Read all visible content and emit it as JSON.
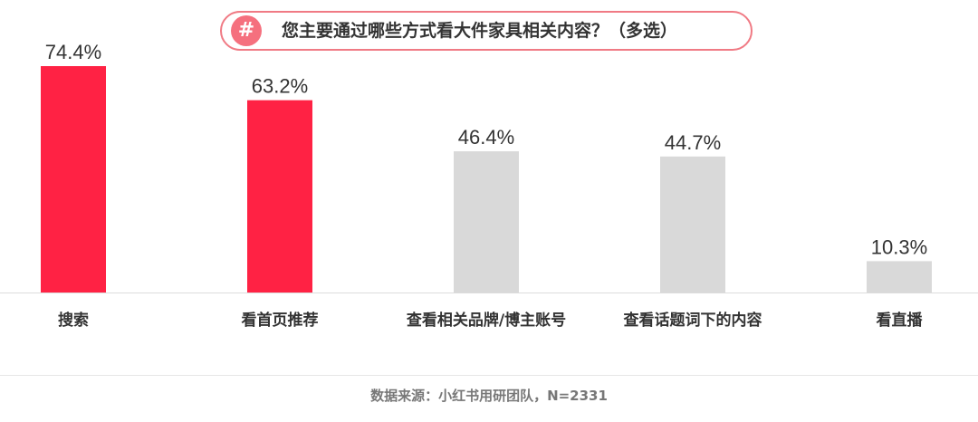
{
  "title": {
    "badge_symbol": "#",
    "text": "您主要通过哪些方式看大件家具相关内容？（多选）"
  },
  "source": "数据来源：小红书用研团队，N=2331",
  "colors": {
    "highlight": "#ff2244",
    "neutral": "#d9d9d9",
    "pill_border": "#f07a84",
    "badge": "#f5707e"
  },
  "chart_data": {
    "type": "bar",
    "title": "您主要通过哪些方式看大件家具相关内容？（多选）",
    "categories": [
      "搜索",
      "看首页推荐",
      "查看相关品牌/博主账号",
      "查看话题词下的内容",
      "看直播"
    ],
    "values": [
      74.4,
      63.2,
      46.4,
      44.7,
      10.3
    ],
    "value_labels": [
      "74.4%",
      "63.2%",
      "46.4%",
      "44.7%",
      "10.3%"
    ],
    "unit": "%",
    "highlighted": [
      true,
      true,
      false,
      false,
      false
    ],
    "xlabel": "",
    "ylabel": "",
    "ylim": [
      0,
      100
    ],
    "grid": false,
    "legend": "none"
  }
}
